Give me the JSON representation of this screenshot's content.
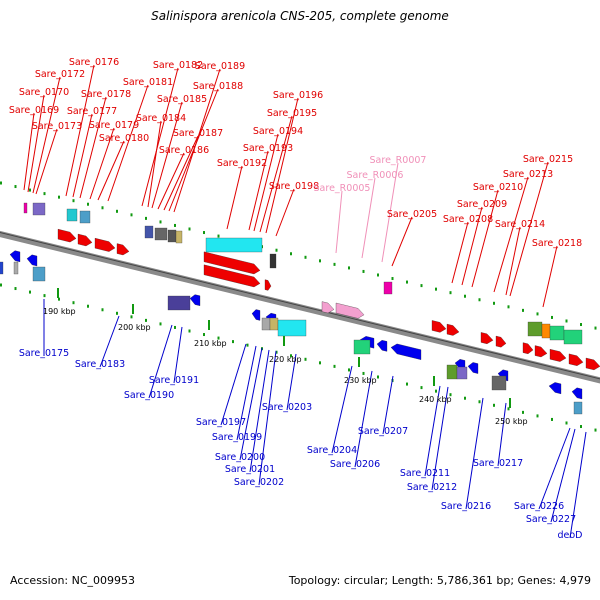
{
  "title": "Salinispora arenicola CNS-205, complete genome",
  "footer": {
    "accession": "Accession: NC_009953",
    "summary": "Topology: circular; Length: 5,786,361 bp; Genes: 4,979"
  },
  "colors": {
    "forward_label": "#e00000",
    "reverse_label": "#0000cc",
    "rna_label": "#f090b8",
    "axis": "#8a8a8a",
    "ticks": "#119911"
  },
  "kbp_marks": [
    "190 kbp",
    "200 kbp",
    "210 kbp",
    "220 kbp",
    "230 kbp",
    "240 kbp",
    "250 kbp"
  ],
  "forward_labels": [
    "Sare_0169",
    "Sare_0170",
    "Sare_0172",
    "Sare_0173",
    "Sare_0176",
    "Sare_0177",
    "Sare_0178",
    "Sare_0179",
    "Sare_0180",
    "Sare_0181",
    "Sare_0182",
    "Sare_0184",
    "Sare_0185",
    "Sare_0186",
    "Sare_0187",
    "Sare_0188",
    "Sare_0189",
    "Sare_0192",
    "Sare_0193",
    "Sare_0194",
    "Sare_0195",
    "Sare_0196",
    "Sare_0198",
    "Sare_0205",
    "Sare_0208",
    "Sare_0209",
    "Sare_0210",
    "Sare_0213",
    "Sare_0214",
    "Sare_0215",
    "Sare_0218"
  ],
  "rna_labels": [
    "Sare_R0005",
    "Sare_R0006",
    "Sare_R0007"
  ],
  "reverse_labels": [
    "Sare_0175",
    "Sare_0183",
    "Sare_0190",
    "Sare_0191",
    "Sare_0197",
    "Sare_0199",
    "Sare_0200",
    "Sare_0201",
    "Sare_0202",
    "Sare_0203",
    "Sare_0204",
    "Sare_0206",
    "Sare_0207",
    "Sare_0211",
    "Sare_0212",
    "Sare_0216",
    "Sare_0217",
    "Sare_0226",
    "Sare_0227",
    "deoD"
  ]
}
